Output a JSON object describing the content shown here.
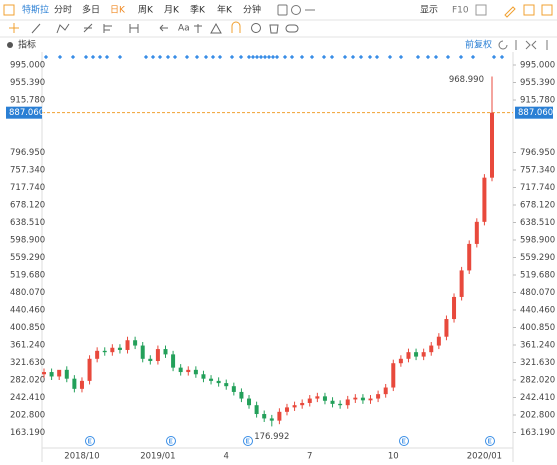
{
  "toolbar": {
    "stock": "特斯拉",
    "periods": [
      "分时",
      "多日",
      "日K",
      "周K",
      "月K",
      "季K",
      "年K",
      "分钟"
    ],
    "selected": 2,
    "display": "显示",
    "f10": "F10",
    "font_tool": "Aa",
    "indicator": "指标",
    "adjust": "前复权"
  },
  "chart_data": {
    "type": "candlestick",
    "up_color": "#e8493c",
    "down_color": "#23a05a",
    "series": {
      "open": [
        295,
        300,
        290,
        305,
        285,
        262,
        280,
        330,
        348,
        345,
        355,
        350,
        372,
        360,
        330,
        325,
        352,
        340,
        310,
        300,
        305,
        295,
        285,
        280,
        275,
        268,
        255,
        240,
        225,
        205,
        195,
        190,
        210,
        220,
        225,
        230,
        240,
        245,
        235,
        228,
        225,
        238,
        242,
        236,
        240,
        250,
        265,
        320,
        330,
        345,
        335,
        345,
        360,
        380,
        420,
        470,
        530,
        590,
        640,
        740
      ],
      "high": [
        308,
        308,
        298,
        313,
        293,
        288,
        338,
        356,
        356,
        363,
        363,
        380,
        380,
        368,
        338,
        360,
        360,
        348,
        318,
        313,
        313,
        303,
        293,
        288,
        283,
        276,
        263,
        248,
        233,
        213,
        203,
        218,
        228,
        233,
        238,
        248,
        253,
        253,
        243,
        236,
        246,
        250,
        250,
        248,
        258,
        273,
        328,
        338,
        353,
        353,
        353,
        368,
        388,
        428,
        478,
        538,
        598,
        648,
        748,
        968.99
      ],
      "low": [
        287,
        282,
        282,
        277,
        254,
        254,
        272,
        322,
        337,
        337,
        342,
        342,
        352,
        322,
        317,
        317,
        332,
        302,
        292,
        292,
        287,
        277,
        272,
        267,
        260,
        247,
        232,
        217,
        197,
        187,
        176.992,
        182,
        202,
        212,
        217,
        222,
        232,
        227,
        220,
        217,
        217,
        230,
        228,
        228,
        232,
        242,
        257,
        312,
        322,
        327,
        327,
        337,
        352,
        372,
        412,
        462,
        522,
        582,
        632,
        732
      ],
      "close": [
        300,
        290,
        305,
        285,
        262,
        280,
        330,
        348,
        345,
        355,
        350,
        372,
        360,
        330,
        325,
        352,
        340,
        310,
        300,
        305,
        295,
        285,
        280,
        275,
        268,
        255,
        240,
        225,
        205,
        195,
        190,
        210,
        220,
        225,
        230,
        240,
        245,
        235,
        228,
        225,
        238,
        242,
        236,
        240,
        250,
        265,
        320,
        330,
        345,
        335,
        345,
        360,
        380,
        420,
        470,
        530,
        590,
        640,
        740,
        887.06
      ]
    },
    "ylim": [
      146.2,
      1013.1
    ],
    "yticks": [
      {
        "value": 995,
        "label": "995.000"
      },
      {
        "value": 955.39,
        "label": "955.390"
      },
      {
        "value": 915.78,
        "label": "915.780"
      },
      {
        "value": 796.95,
        "label": "796.950"
      },
      {
        "value": 757.34,
        "label": "757.340"
      },
      {
        "value": 717.74,
        "label": "717.740"
      },
      {
        "value": 678.12,
        "label": "678.120"
      },
      {
        "value": 638.51,
        "label": "638.510"
      },
      {
        "value": 598.9,
        "label": "598.900"
      },
      {
        "value": 559.29,
        "label": "559.290"
      },
      {
        "value": 519.68,
        "label": "519.680"
      },
      {
        "value": 480.07,
        "label": "480.070"
      },
      {
        "value": 440.46,
        "label": "440.460"
      },
      {
        "value": 400.85,
        "label": "400.850"
      },
      {
        "value": 361.24,
        "label": "361.240"
      },
      {
        "value": 321.63,
        "label": "321.630"
      },
      {
        "value": 282.02,
        "label": "282.020"
      },
      {
        "value": 242.41,
        "label": "242.410"
      },
      {
        "value": 202.8,
        "label": "202.800"
      },
      {
        "value": 163.19,
        "label": "163.190"
      }
    ],
    "price_line": {
      "value": 887.06,
      "label": "887.060"
    },
    "max_label": {
      "value": 968.99,
      "label": "968.990"
    },
    "min_label": {
      "value": 176.992,
      "label": "176.992"
    },
    "x_labels": [
      {
        "label": "2018/10",
        "index": 5
      },
      {
        "label": "2019/01",
        "index": 15
      },
      {
        "label": "4",
        "index": 24
      },
      {
        "label": "7",
        "index": 35
      },
      {
        "label": "10",
        "index": 46
      },
      {
        "label": "2020/01",
        "index": 58
      }
    ]
  }
}
